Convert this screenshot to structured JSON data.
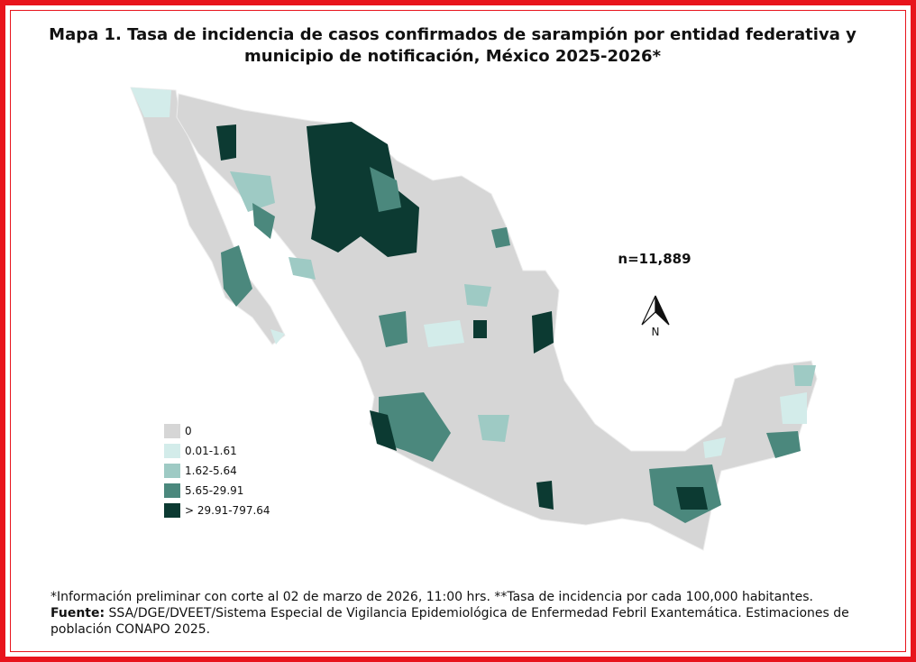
{
  "title_lines": [
    "Mapa 1. Tasa de incidencia de casos confirmados de sarampión por entidad federativa y",
    "municipio de  notificación, México 2025-2026*"
  ],
  "n_label": "n=11,889",
  "north": "N",
  "legend": [
    {
      "label": "0",
      "color": "#d6d6d6"
    },
    {
      "label": "0.01-1.61",
      "color": "#d3ecea"
    },
    {
      "label": "1.62-5.64",
      "color": "#9ecac4"
    },
    {
      "label": "5.65-29.91",
      "color": "#4b887d"
    },
    {
      "label": "> 29.91-797.64",
      "color": "#0c3a32"
    }
  ],
  "note": "*Información preliminar con corte al 02 de marzo de 2026, 11:00 hrs. **Tasa de incidencia por cada 100,000 habitantes.",
  "source_label": "Fuente:",
  "source_text": "SSA/DGE/DVEET/Sistema Especial de Vigilancia Epidemiológica de Enfermedad Febril Exantemática. Estimaciones de población CONAPO 2025."
}
